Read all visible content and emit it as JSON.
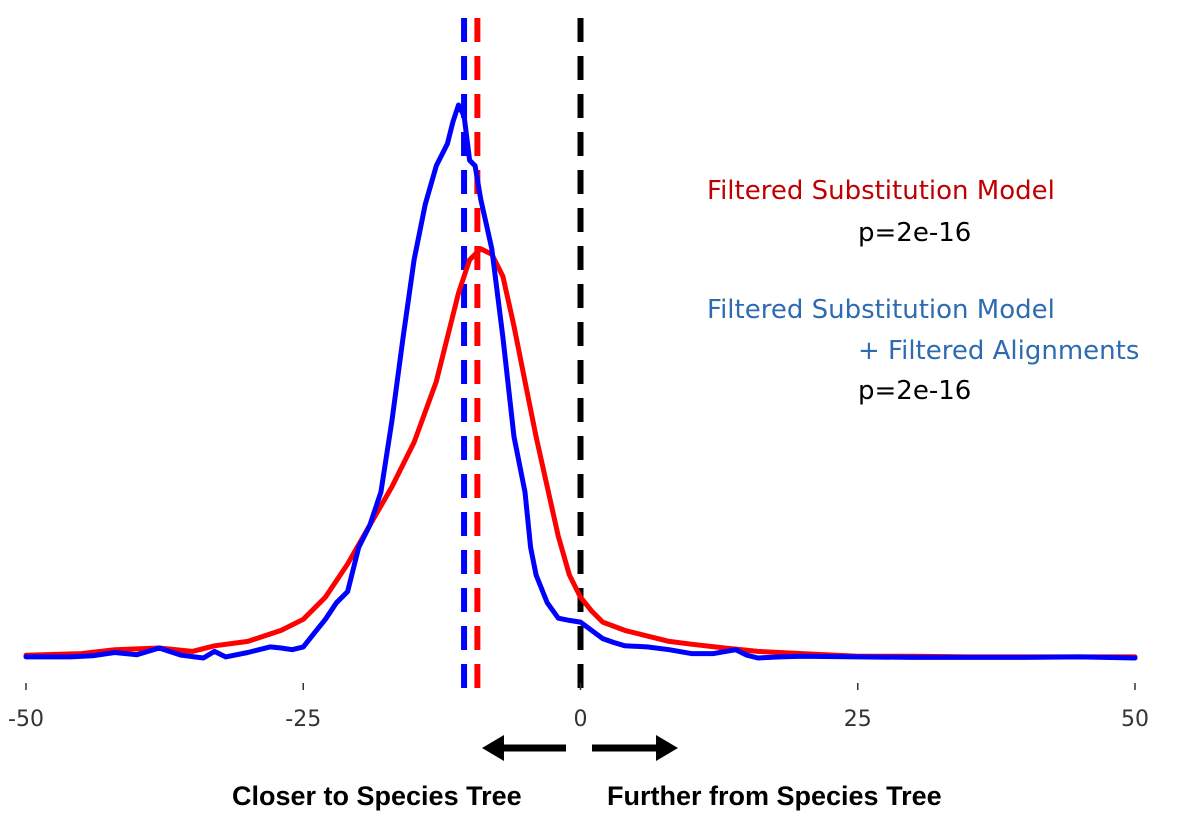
{
  "chart_data": {
    "type": "line",
    "title": "",
    "xlabel": "",
    "ylabel": "",
    "xlim": [
      -50,
      50
    ],
    "ylim": [
      0,
      1.0
    ],
    "grid": false,
    "x_ticks": [
      -50,
      -25,
      0,
      25,
      50
    ],
    "x_tick_labels": [
      "-50",
      "-25",
      "0",
      "25",
      "50"
    ],
    "series": [
      {
        "color": "#ff0000",
        "x": [
          -50,
          -45,
          -42,
          -38,
          -35,
          -33,
          -30,
          -27,
          -25,
          -23,
          -21,
          -19,
          -17,
          -15,
          -13,
          -12,
          -11,
          -10,
          -9,
          -8,
          -7,
          -6,
          -5,
          -4,
          -3,
          -2,
          -1,
          0,
          1,
          2,
          4,
          6,
          8,
          10,
          13,
          16,
          20,
          25,
          30,
          35,
          40,
          45,
          50
        ],
        "y": [
          0.005,
          0.008,
          0.015,
          0.018,
          0.012,
          0.022,
          0.03,
          0.05,
          0.07,
          0.11,
          0.17,
          0.24,
          0.31,
          0.39,
          0.5,
          0.58,
          0.66,
          0.72,
          0.74,
          0.73,
          0.69,
          0.6,
          0.5,
          0.4,
          0.31,
          0.22,
          0.15,
          0.11,
          0.085,
          0.065,
          0.05,
          0.04,
          0.03,
          0.025,
          0.018,
          0.012,
          0.008,
          0.003,
          0.003,
          0.002,
          0.002,
          0.002,
          0.002
        ]
      },
      {
        "color": "#0000ff",
        "x": [
          -50,
          -46,
          -44,
          -42,
          -40,
          -38,
          -36,
          -34,
          -33,
          -32,
          -30,
          -28,
          -27,
          -26,
          -25,
          -24,
          -23,
          -22,
          -21,
          -20,
          -19,
          -18,
          -17,
          -16,
          -15,
          -14,
          -13,
          -12,
          -11.5,
          -11,
          -10.5,
          -10,
          -9.5,
          -9,
          -8,
          -7,
          -6,
          -5,
          -4.5,
          -4,
          -3,
          -2,
          -1,
          0,
          1,
          2,
          3,
          4,
          6,
          8,
          10,
          12,
          14,
          15,
          16,
          18,
          20,
          25,
          30,
          35,
          40,
          45,
          50
        ],
        "y": [
          0.002,
          0.002,
          0.004,
          0.01,
          0.006,
          0.018,
          0.005,
          0.0,
          0.012,
          0.002,
          0.01,
          0.02,
          0.018,
          0.015,
          0.02,
          0.045,
          0.07,
          0.1,
          0.12,
          0.2,
          0.24,
          0.3,
          0.43,
          0.58,
          0.72,
          0.82,
          0.89,
          0.93,
          0.97,
          1.0,
          0.98,
          0.9,
          0.89,
          0.83,
          0.74,
          0.58,
          0.4,
          0.3,
          0.2,
          0.15,
          0.1,
          0.072,
          0.068,
          0.065,
          0.05,
          0.035,
          0.028,
          0.022,
          0.02,
          0.015,
          0.008,
          0.008,
          0.015,
          0.005,
          0.0,
          0.002,
          0.003,
          0.002,
          0.001,
          0.001,
          0.001,
          0.002,
          0.0
        ]
      }
    ],
    "reference_lines": [
      {
        "x": -10.5,
        "color": "#0000ff",
        "style": "dashed"
      },
      {
        "x": -9.3,
        "color": "#ff0000",
        "style": "dashed"
      },
      {
        "x": 0,
        "color": "#000000",
        "style": "dashed"
      }
    ],
    "legend": [
      {
        "lines": [
          "Filtered Substitution Model"
        ],
        "color": "#c00000"
      },
      {
        "lines": [
          "p=2e-16"
        ],
        "color": "#000000"
      },
      {
        "lines": [
          "Filtered Substitution Model"
        ],
        "color": "#2e6bb0"
      },
      {
        "lines": [
          "+ Filtered Alignments"
        ],
        "color": "#2e6bb0"
      },
      {
        "lines": [
          "p=2e-16"
        ],
        "color": "#000000"
      }
    ],
    "legend_placement": "right",
    "direction_labels": {
      "left": "Closer to Species Tree",
      "right": "Further from Species Tree"
    }
  }
}
